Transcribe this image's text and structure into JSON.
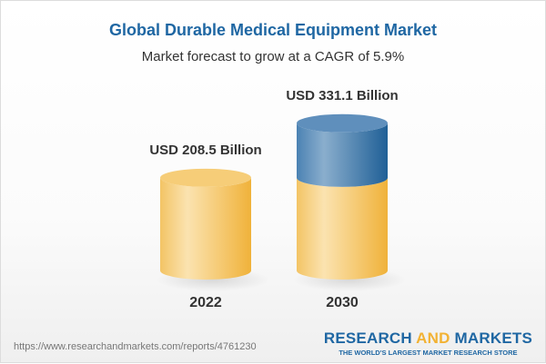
{
  "title": "Global Durable Medical Equipment Market",
  "subtitle": "Market forecast to grow at a CAGR of 5.9%",
  "source_url": "https://www.researchandmarkets.com/reports/4761230",
  "logo": {
    "part1": "RESEARCH ",
    "part2": "AND",
    "part3": " MARKETS",
    "tagline": "THE WORLD'S LARGEST MARKET RESEARCH STORE"
  },
  "colors": {
    "title": "#1f67a3",
    "gold": "#f2b94a",
    "blue": "#3f78aa"
  },
  "chart_data": {
    "type": "bar",
    "style": "3d-cylinder",
    "categories": [
      "2022",
      "2030"
    ],
    "values": [
      208.5,
      331.1
    ],
    "data_labels": [
      "USD 208.5 Billion",
      "USD 331.1 Billion"
    ],
    "unit": "USD Billion",
    "cagr": "5.9%",
    "note": "2030 cylinder shows 2022 base in gold with growth portion in blue"
  }
}
